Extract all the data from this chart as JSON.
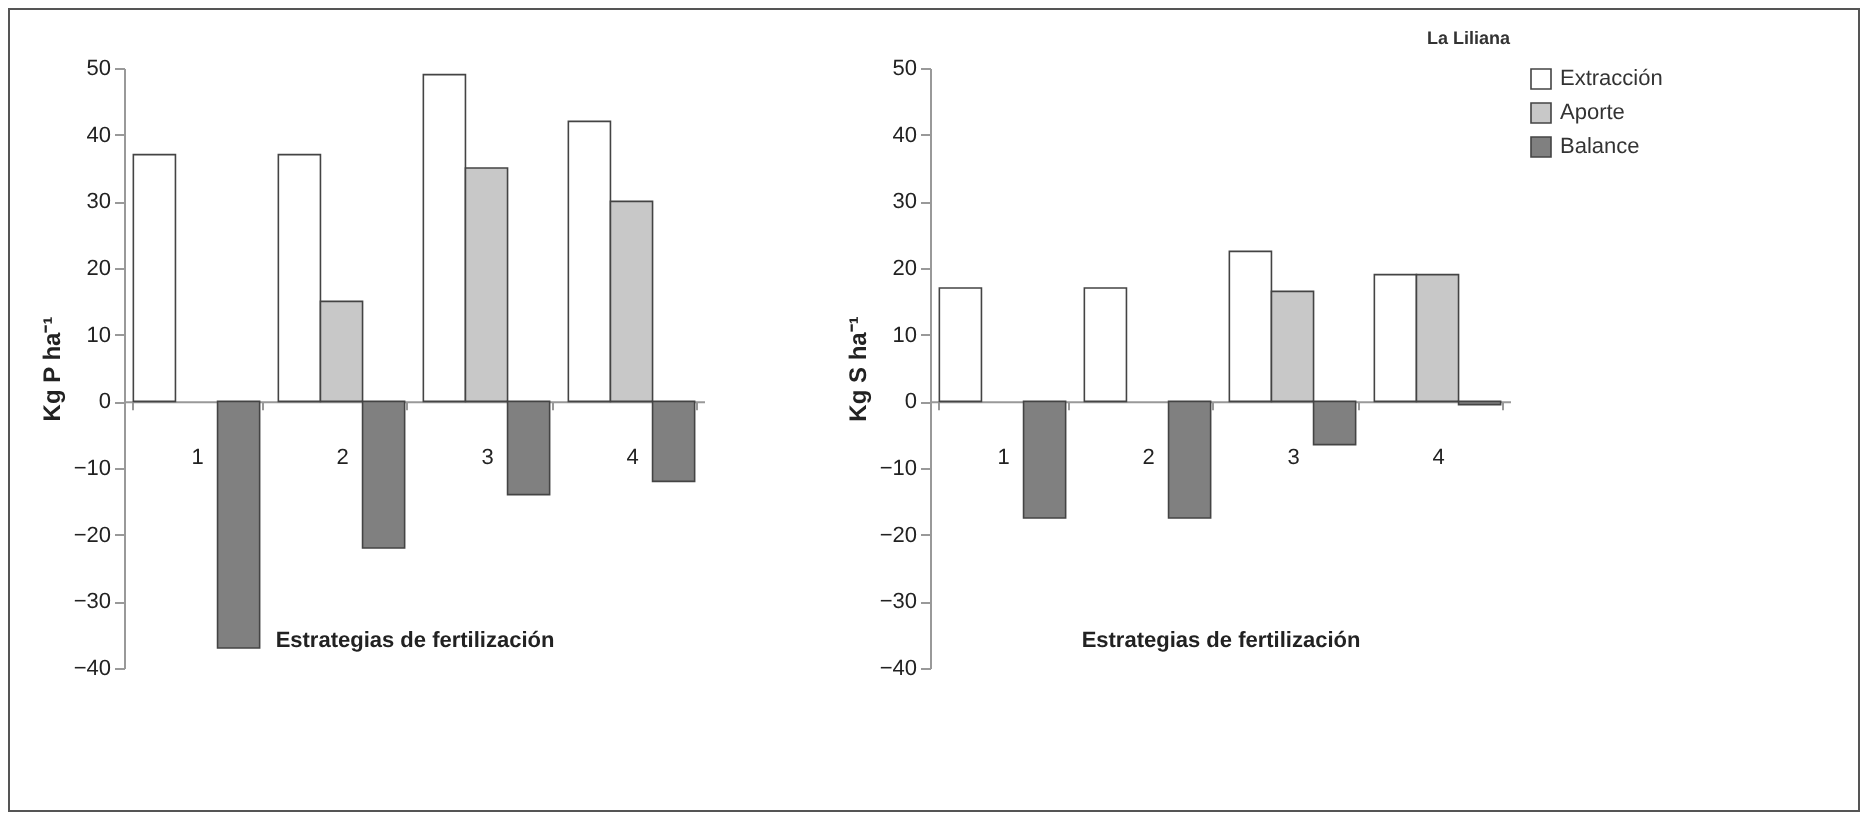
{
  "chart_data": [
    {
      "type": "bar",
      "categories": [
        "1",
        "2",
        "3",
        "4"
      ],
      "xlabel": "Estrategias de fertilización",
      "ylabel": "Kg P ha⁻¹",
      "ylim": [
        -40,
        50
      ],
      "yticks": [
        -40,
        -30,
        -20,
        -10,
        0,
        10,
        20,
        30,
        40,
        50
      ],
      "grid": false,
      "legend": "right",
      "series": [
        {
          "name": "Extracción",
          "color": "#ffffff",
          "values": [
            37,
            37,
            49,
            42
          ]
        },
        {
          "name": "Aporte",
          "color": "#c8c8c8",
          "values": [
            null,
            15,
            35,
            30
          ]
        },
        {
          "name": "Balance",
          "color": "#808080",
          "values": [
            -37,
            -22,
            -14,
            -12
          ]
        }
      ]
    },
    {
      "type": "bar",
      "categories": [
        "1",
        "2",
        "3",
        "4"
      ],
      "xlabel": "Estrategias de fertilización",
      "ylabel": "Kg S ha⁻¹",
      "ylim": [
        -40,
        50
      ],
      "yticks": [
        -40,
        -30,
        -20,
        -10,
        0,
        10,
        20,
        30,
        40,
        50
      ],
      "grid": false,
      "legend": "right",
      "annotations": [
        "La Liliana"
      ],
      "series": [
        {
          "name": "Extracción",
          "color": "#ffffff",
          "values": [
            17,
            17,
            22.5,
            19
          ]
        },
        {
          "name": "Aporte",
          "color": "#c8c8c8",
          "values": [
            null,
            null,
            16.5,
            19
          ]
        },
        {
          "name": "Balance",
          "color": "#808080",
          "values": [
            -17.5,
            -17.5,
            -6.5,
            -0.5
          ]
        }
      ]
    }
  ]
}
